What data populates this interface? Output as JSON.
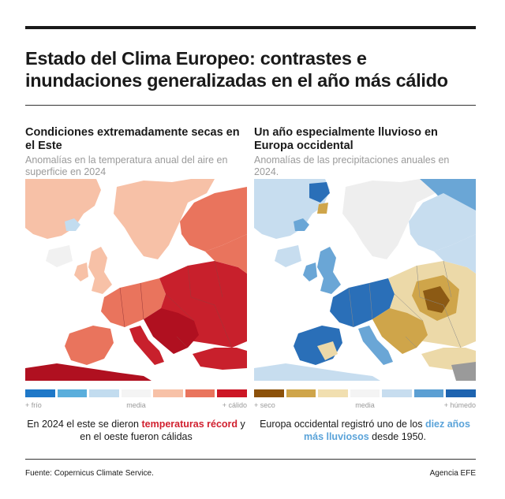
{
  "headline": "Estado del Clima Europeo: contrastes e inundaciones generalizadas en el año más cálido",
  "left_panel": {
    "title": "Condiciones extremadamente secas en el Este",
    "subtitle": "Anomalías en la temperatura anual del aire en superficie en 2024",
    "legend": {
      "colors": [
        "#1f78c8",
        "#5aaedc",
        "#c2dcef",
        "#f4f4f4",
        "#f7c1a7",
        "#e9745d",
        "#cc1625"
      ],
      "low_label": "+ frío",
      "mid_label": "media",
      "high_label": "+ cálido"
    },
    "caption": {
      "part1": "En 2024 el este se dieron ",
      "highlight": "temperaturas récord",
      "part2": " y en el oeste fueron cálidas"
    },
    "map_colors": {
      "sea": "#ffffff",
      "land_light": "#f7c1a7",
      "land_mid": "#e9745d",
      "land_hot": "#c8202c",
      "land_hottest": "#b01020",
      "cool": "#c2dcef",
      "neutral": "#f1f1f1",
      "border": "#9b3a3a"
    }
  },
  "right_panel": {
    "title": "Un año especialmente lluvioso en Europa occidental",
    "subtitle": "Anomalías de las precipitaciones anuales en 2024.",
    "legend": {
      "colors": [
        "#8c510a",
        "#cfa54a",
        "#f1dfb0",
        "#f4f4f4",
        "#c7ddef",
        "#5b9fd3",
        "#1e64b0"
      ],
      "low_label": "+ seco",
      "mid_label": "media",
      "high_label": "+ húmedo"
    },
    "caption": {
      "part1": "Europa occidental registró uno de los ",
      "highlight": "diez años más lluviosos",
      "part2": " desde 1950."
    },
    "map_colors": {
      "sea": "#ffffff",
      "wet_strong": "#2a6fb8",
      "wet_mid": "#6aa6d6",
      "wet_light": "#c7ddef",
      "neutral": "#eeeeee",
      "dry_light": "#ecd9a8",
      "dry_mid": "#cfa54a",
      "dry_strong": "#8c5a14",
      "grey": "#9a9a9a",
      "border": "#8a8a8a"
    }
  },
  "footer": {
    "source": "Fuente: Copernicus Climate Service.",
    "agency": "Agencia EFE"
  }
}
